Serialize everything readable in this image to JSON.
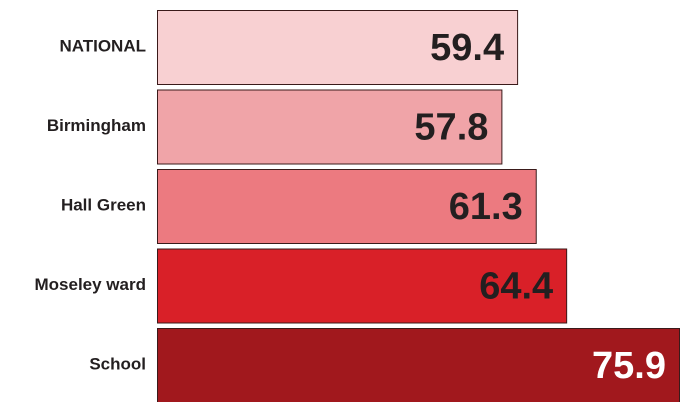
{
  "chart_data": {
    "type": "barh",
    "categories": [
      "NATIONAL",
      "Birmingham",
      "Hall Green",
      "Moseley ward",
      "School"
    ],
    "values": [
      59.4,
      57.8,
      61.3,
      64.4,
      75.9
    ],
    "colors": [
      "#f8d0d2",
      "#f0a4a8",
      "#ec7a80",
      "#d92028",
      "#a1181d"
    ],
    "label_colors": [
      "#231f20",
      "#231f20",
      "#231f20",
      "#231f20",
      "#ffffff"
    ],
    "xlim": [
      22.6,
      75.9
    ]
  }
}
